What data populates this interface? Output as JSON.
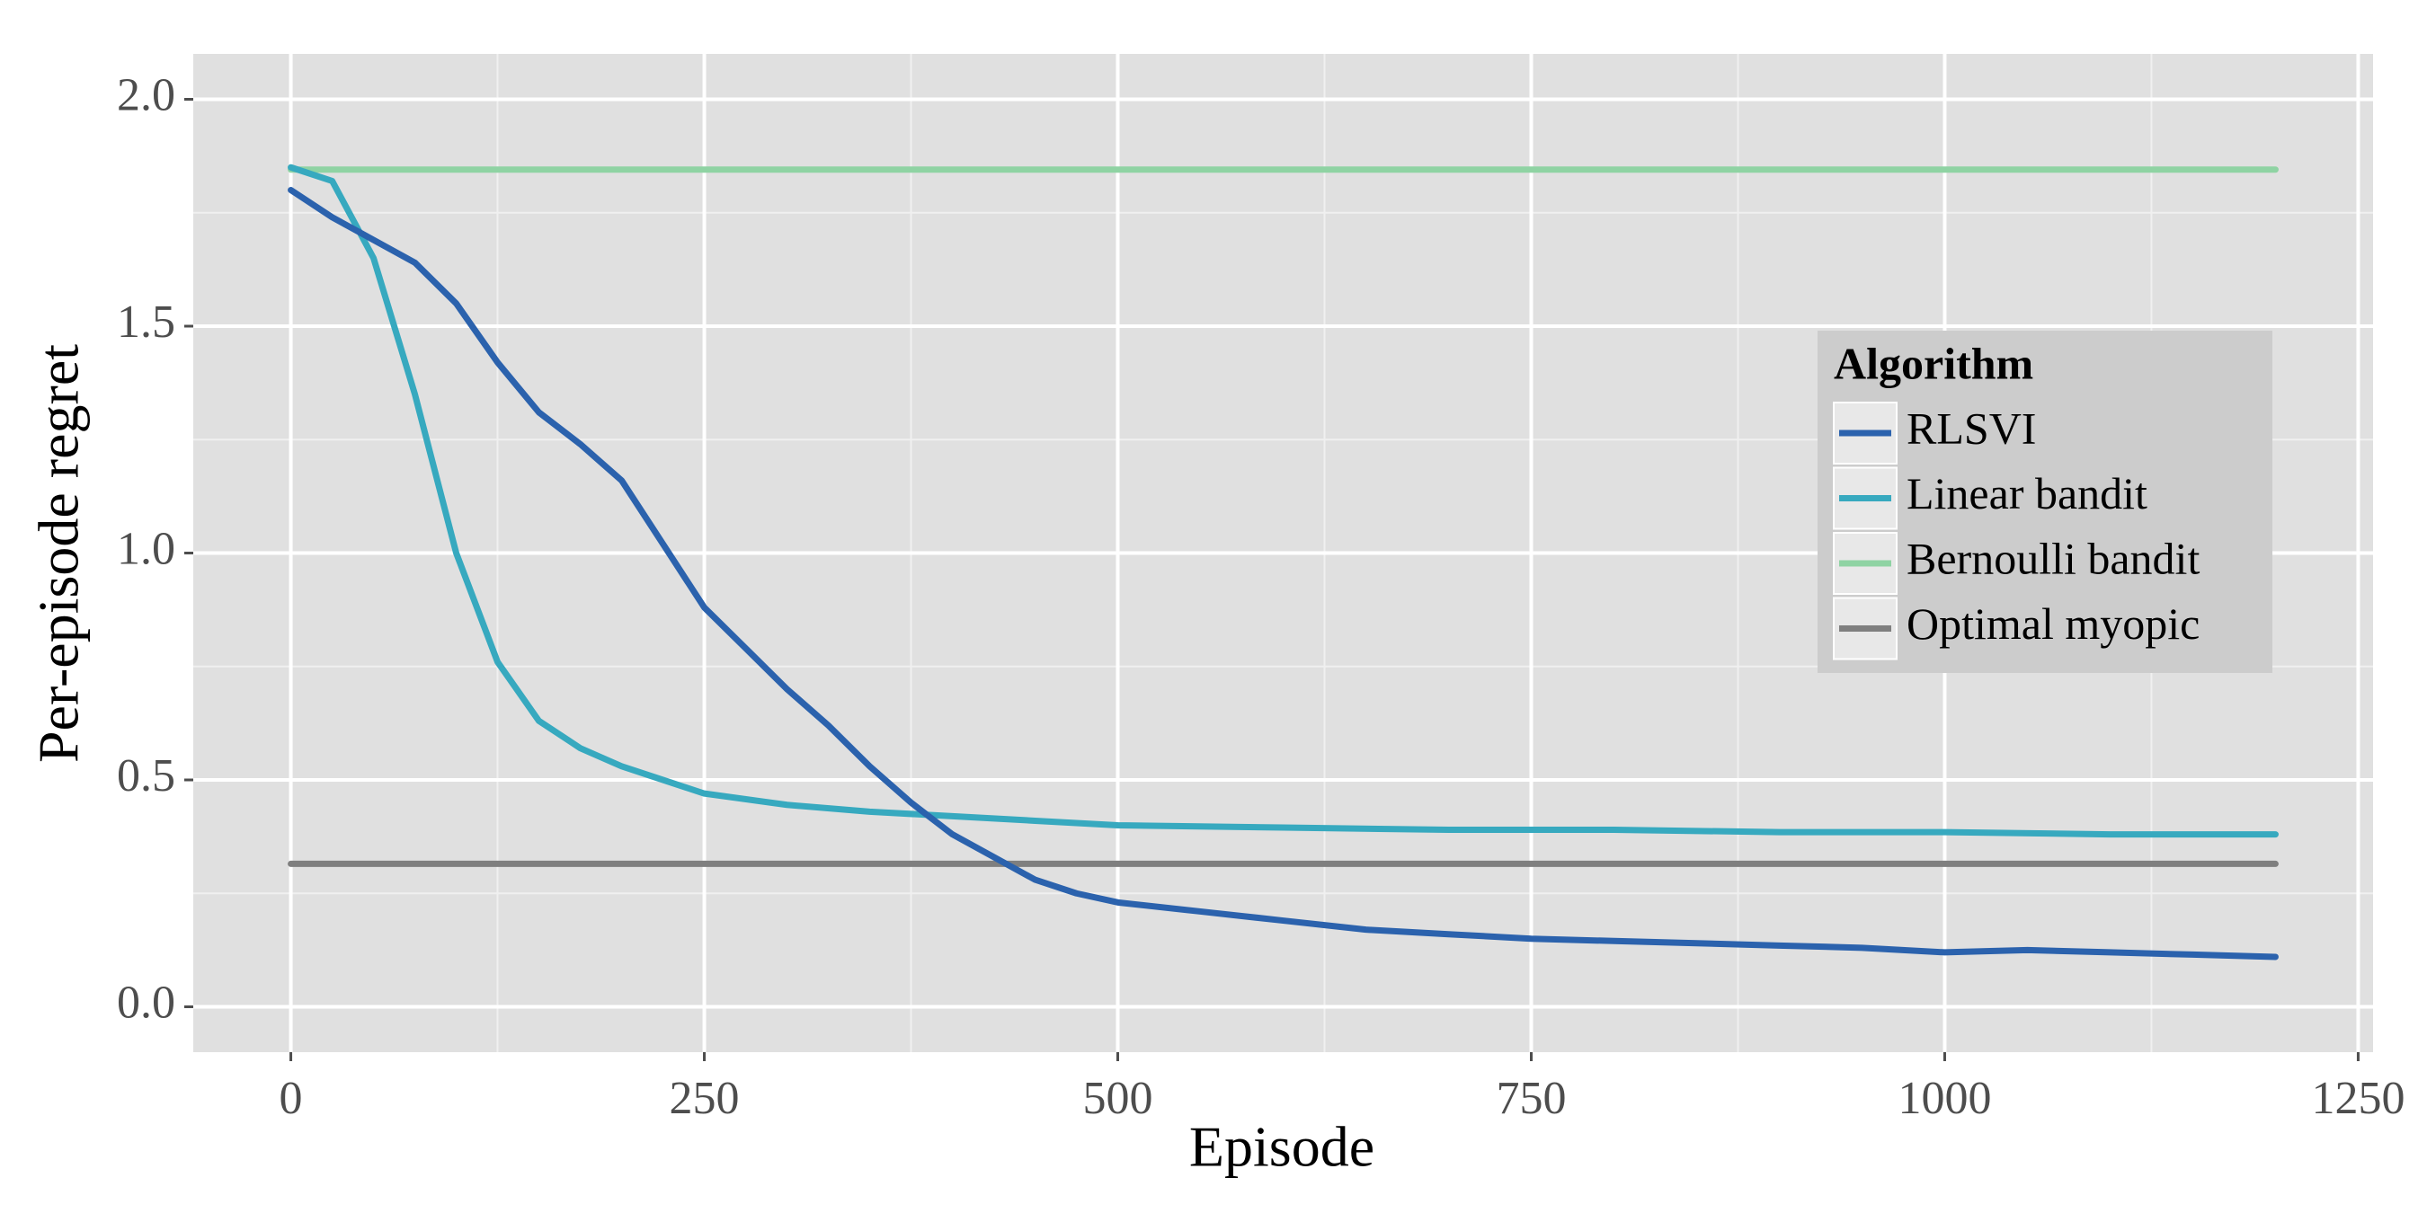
{
  "chart_data": {
    "type": "line",
    "x_label": "Episode",
    "y_label": "Per-episode regret",
    "xlim": [
      -59,
      1259
    ],
    "ylim": [
      -0.1,
      2.1
    ],
    "xticks": [
      0,
      250,
      500,
      750,
      1000,
      1250
    ],
    "yticks": [
      {
        "value": 0,
        "label": "0.0"
      },
      0.5,
      {
        "value": 1,
        "label": "1.0"
      },
      1.5,
      {
        "value": 2,
        "label": "2.0"
      }
    ],
    "x_minor_ticks": [
      125,
      375,
      625,
      875,
      1125
    ],
    "y_minor_ticks": [
      0.25,
      0.75,
      1.25,
      1.75
    ],
    "grid": true,
    "legend": "right",
    "legend_title": "Algorithm",
    "series": [
      {
        "name": "RLSVI",
        "color": "#2b62ad",
        "x": [
          0,
          25,
          50,
          75,
          100,
          125,
          150,
          175,
          200,
          225,
          250,
          275,
          300,
          325,
          350,
          375,
          400,
          425,
          450,
          475,
          500,
          550,
          600,
          650,
          700,
          750,
          800,
          850,
          900,
          950,
          1000,
          1050,
          1100,
          1150,
          1200
        ],
        "values": [
          1.8,
          1.74,
          1.69,
          1.64,
          1.55,
          1.42,
          1.31,
          1.24,
          1.16,
          1.02,
          0.88,
          0.79,
          0.7,
          0.62,
          0.53,
          0.45,
          0.38,
          0.33,
          0.28,
          0.25,
          0.23,
          0.21,
          0.19,
          0.17,
          0.16,
          0.15,
          0.145,
          0.14,
          0.135,
          0.13,
          0.12,
          0.125,
          0.12,
          0.115,
          0.11
        ]
      },
      {
        "name": "Linear bandit",
        "color": "#37a9bf",
        "x": [
          0,
          25,
          50,
          75,
          100,
          125,
          150,
          175,
          200,
          225,
          250,
          300,
          350,
          400,
          450,
          500,
          600,
          700,
          800,
          900,
          1000,
          1100,
          1200
        ],
        "values": [
          1.85,
          1.82,
          1.65,
          1.35,
          1.0,
          0.76,
          0.63,
          0.57,
          0.53,
          0.5,
          0.47,
          0.445,
          0.43,
          0.42,
          0.41,
          0.4,
          0.395,
          0.39,
          0.39,
          0.385,
          0.385,
          0.38,
          0.38
        ]
      },
      {
        "name": "Bernoulli bandit",
        "color": "#8fd3a3",
        "x": [
          0,
          200,
          400,
          600,
          800,
          1000,
          1200
        ],
        "values": [
          1.845,
          1.845,
          1.845,
          1.845,
          1.845,
          1.845,
          1.845
        ]
      },
      {
        "name": "Optimal myopic",
        "color": "#7f7f7f",
        "x": [
          0,
          1200
        ],
        "values": [
          0.315,
          0.315
        ]
      }
    ]
  }
}
